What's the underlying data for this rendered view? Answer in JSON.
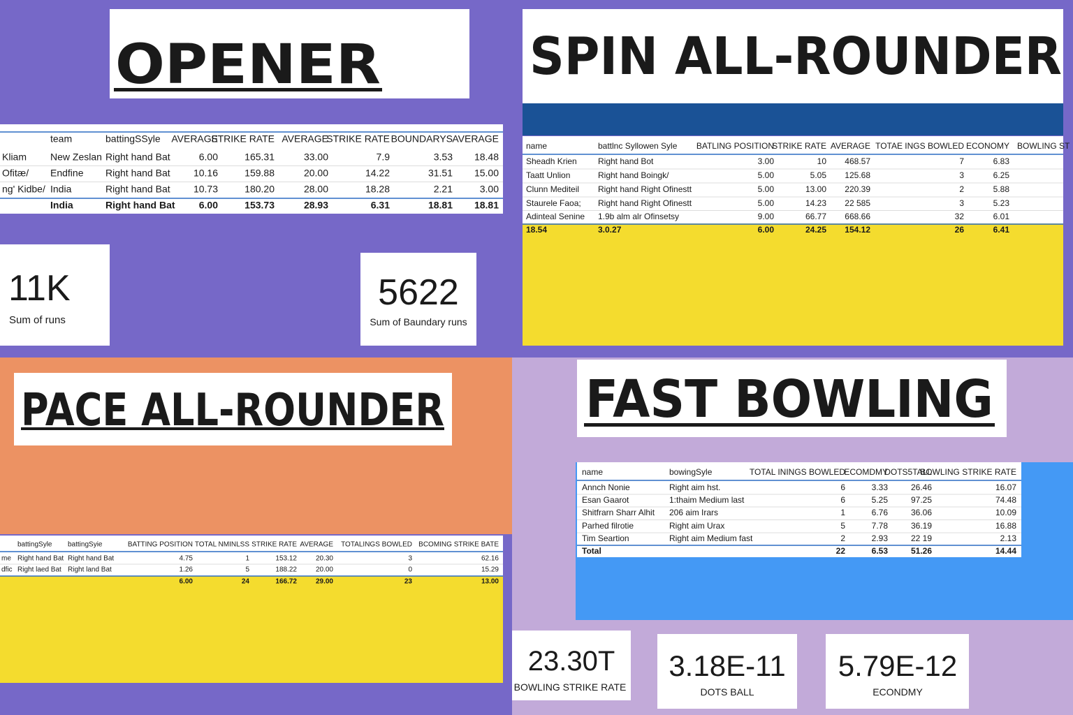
{
  "panels": [
    {
      "title": "OPENER",
      "table": {
        "header": [
          null,
          "team",
          "battingSSyle",
          "AVERAGE",
          "STRIKE RATE",
          "AVERAGE",
          "STRIKE RATE",
          "BOUNDARYS",
          "AVERAGE"
        ],
        "rows": [
          [
            "Kliam",
            "New Zeslan",
            "Right hand Bat",
            "6.00",
            "165.31",
            "33.00",
            "7.9",
            "3.53",
            "18.48"
          ],
          [
            "Ofitæ/",
            "Endfine",
            "Right hand Bat",
            "10.16",
            "159.88",
            "20.00",
            "14.22",
            "31.51",
            "15.00"
          ],
          [
            "ng' Kidbe/",
            "India",
            "Right hand Bat",
            "10.73",
            "180.20",
            "28.00",
            "18.28",
            "2.21",
            "3.00"
          ]
        ],
        "total": [
          null,
          "India",
          "Right hand Bat",
          "6.00",
          "153.73",
          "28.93",
          "6.31",
          "18.81",
          "18.81"
        ]
      },
      "cards": [
        {
          "value": "11K",
          "label": "Sum of runs"
        },
        {
          "value": "5622",
          "label": "Sum of Baundary runs"
        }
      ]
    },
    {
      "title": "SPIN  ALL-ROUNDER",
      "table": {
        "header": [
          "name",
          "battlnc Syllowen Syle",
          "BATLING POSITION",
          "STRIKE RATE",
          "AVERAGE",
          "TOTAE INGS BOWLED",
          "ECONOMY",
          "BOWLING ST"
        ],
        "rows": [
          [
            "Sheadh Krien",
            "Right hand Bot",
            "3.00",
            "10",
            "468.57",
            "7",
            "6.83"
          ],
          [
            "Taatt Unlion",
            "Right hand Boingk/",
            "5.00",
            "5.05",
            "125.68",
            "3",
            "6.25"
          ],
          [
            "Clunn Mediteil",
            "Right hand Right Ofinestt",
            "5.00",
            "13.00",
            "220.39",
            "2",
            "5.88"
          ],
          [
            "Staurele Faoa;",
            "Right hand Right Ofinestt",
            "5.00",
            "14.23",
            "22 585",
            "3",
            "5.23"
          ],
          [
            "Adinteal Senine",
            "1.9b alm alr Ofinsetsy",
            "9.00",
            "66.77",
            "668.66",
            "32",
            "6.01"
          ]
        ],
        "total": [
          "18.54",
          "3.0.27",
          "6.00",
          "24.25",
          "154.12",
          "26",
          "6.41"
        ]
      }
    },
    {
      "title": "PACE ALL-ROUNDER",
      "table": {
        "header": [
          null,
          "battingSyle",
          "battingSyie",
          "BATTING POSITION",
          "TOTAL NMINLSS",
          "STRIKE RATE",
          "AVERAGE",
          "TOTALINGS BOWLED",
          "BCOMING STRIKE BATE"
        ],
        "rows": [
          [
            "me",
            "Right hand Bat",
            "Right hand Bat",
            "4.75",
            "1",
            "153.12",
            "20.30",
            "3",
            "62.16"
          ],
          [
            "dfic",
            "Right laed Bat",
            "Right land Bat",
            "1.26",
            "5",
            "188.22",
            "20.00",
            "0",
            "15.29"
          ]
        ],
        "total": [
          null,
          null,
          null,
          "6.00",
          "24",
          "166.72",
          "29.00",
          "23",
          "13.00"
        ]
      }
    },
    {
      "title": "FAST BOWLING",
      "table": {
        "header": [
          "name",
          "bowingSyle",
          "TOTAL ININGS BOWLED",
          "ECOMDMY",
          "DOTS5TALL",
          "BOWLING STRIKE RATE"
        ],
        "rows": [
          [
            "Annch Nonie",
            "Right aim hst.",
            "6",
            "3.33",
            "26.46",
            "16.07"
          ],
          [
            "Esan Gaarot",
            "1:thaim Medium last",
            "6",
            "5.25",
            "97.25",
            "74.48"
          ],
          [
            "Shitfrarn Sharr Alhit",
            "206 aim Irars",
            "1",
            "6.76",
            "36.06",
            "10.09"
          ],
          [
            "Parhed filrotie",
            "Right aim Urax",
            "5",
            "7.78",
            "36.19",
            "16.88"
          ],
          [
            "Tim Seartion",
            "Right aim Medium fast",
            "2",
            "2.93",
            "22 19",
            "2.13"
          ]
        ],
        "total": [
          "Total",
          null,
          "22",
          "6.53",
          "51.26",
          "14.44"
        ]
      },
      "cards": [
        {
          "value": "23.30T",
          "label": "BOWLING STRIKE RATE"
        },
        {
          "value": "3.18E-11",
          "label": "DOTS BALL"
        },
        {
          "value": "5.79E-12",
          "label": "ECONDMY"
        }
      ]
    }
  ]
}
